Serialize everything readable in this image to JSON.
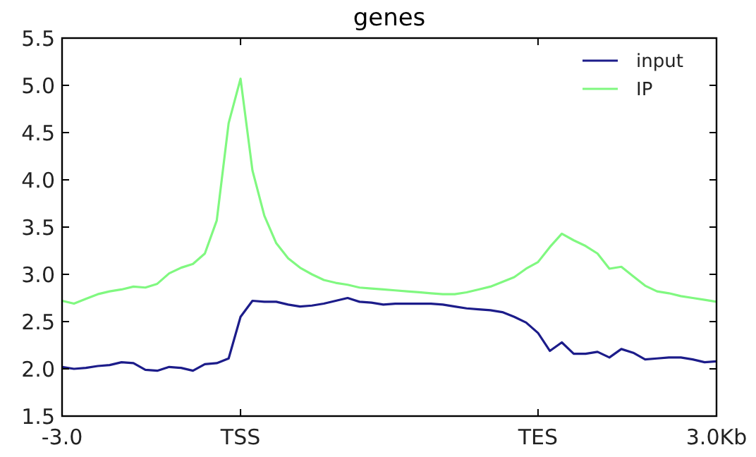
{
  "chart_data": {
    "type": "line",
    "title": "genes",
    "categories": [
      "-3.0",
      null,
      null,
      null,
      null,
      null,
      null,
      null,
      null,
      null,
      null,
      null,
      null,
      null,
      null,
      "TSS",
      null,
      null,
      null,
      null,
      null,
      null,
      null,
      null,
      null,
      null,
      null,
      null,
      null,
      null,
      null,
      null,
      null,
      null,
      null,
      null,
      null,
      null,
      null,
      null,
      "TES",
      null,
      null,
      null,
      null,
      null,
      null,
      null,
      null,
      null,
      null,
      null,
      null,
      null,
      null,
      "3.0Kb"
    ],
    "ylim": [
      1.5,
      5.5
    ],
    "yticks": [
      {
        "value": 1.5,
        "label": "1.5"
      },
      {
        "value": 2,
        "label": "2.0"
      },
      {
        "value": 2.5,
        "label": "2.5"
      },
      {
        "value": 3,
        "label": "3.0"
      },
      {
        "value": 3.5,
        "label": "3.5"
      },
      {
        "value": 4,
        "label": "4.0"
      },
      {
        "value": 4.5,
        "label": "4.5"
      },
      {
        "value": 5,
        "label": "5.0"
      },
      {
        "value": 5.5,
        "label": "5.5"
      }
    ],
    "legend": "top right",
    "line_style": "solid",
    "series": [
      {
        "name": "input",
        "color": "#1c1c8a",
        "values": [
          2.02,
          2.0,
          2.01,
          2.03,
          2.04,
          2.07,
          2.06,
          1.99,
          1.98,
          2.02,
          2.01,
          1.98,
          2.05,
          2.06,
          2.11,
          2.55,
          2.72,
          2.71,
          2.71,
          2.68,
          2.66,
          2.67,
          2.69,
          2.72,
          2.75,
          2.71,
          2.7,
          2.68,
          2.69,
          2.69,
          2.69,
          2.69,
          2.68,
          2.66,
          2.64,
          2.63,
          2.62,
          2.6,
          2.55,
          2.49,
          2.38,
          2.19,
          2.28,
          2.16,
          2.16,
          2.18,
          2.12,
          2.21,
          2.17,
          2.1,
          2.11,
          2.12,
          2.12,
          2.1,
          2.07,
          2.08
        ]
      },
      {
        "name": "IP",
        "color": "#80f880",
        "values": [
          2.72,
          2.69,
          2.74,
          2.79,
          2.82,
          2.84,
          2.87,
          2.86,
          2.9,
          3.01,
          3.07,
          3.11,
          3.22,
          3.57,
          4.6,
          5.07,
          4.1,
          3.62,
          3.33,
          3.17,
          3.07,
          3.0,
          2.94,
          2.91,
          2.89,
          2.86,
          2.85,
          2.84,
          2.83,
          2.82,
          2.81,
          2.8,
          2.79,
          2.79,
          2.81,
          2.84,
          2.87,
          2.92,
          2.97,
          3.06,
          3.13,
          3.29,
          3.43,
          3.36,
          3.3,
          3.22,
          3.06,
          3.08,
          2.98,
          2.88,
          2.82,
          2.8,
          2.77,
          2.75,
          2.73,
          2.71
        ]
      }
    ]
  }
}
